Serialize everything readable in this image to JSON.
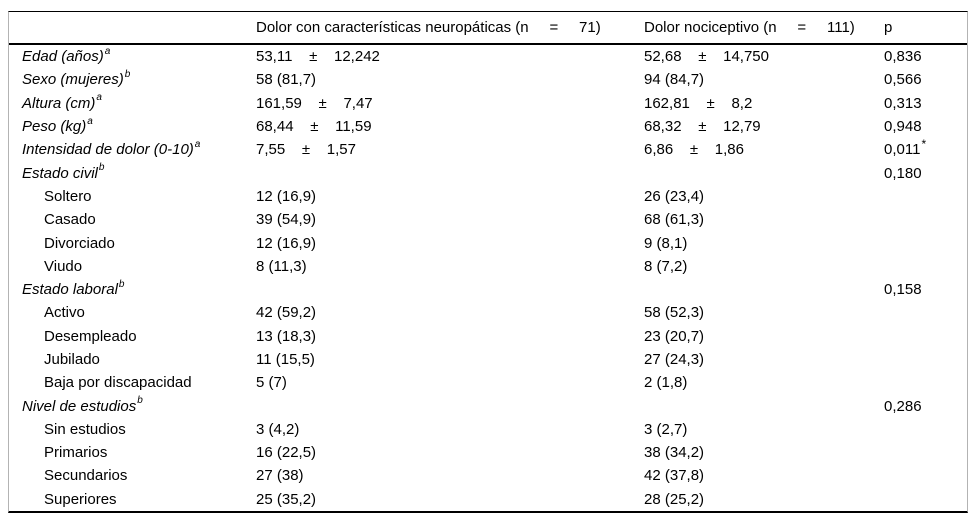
{
  "table": {
    "header": {
      "col1": "",
      "col2": "Dolor con características neuropáticas (n     =     71)",
      "col3": "Dolor nociceptivo (n     =     111)",
      "col4": "p"
    },
    "rows": [
      {
        "label": "Edad (años)",
        "sup": "a",
        "sub": false,
        "neuropathic": "53,11    ±    12,242",
        "nociceptive": "52,68    ±    14,750",
        "p": "0,836",
        "p_sup": ""
      },
      {
        "label": "Sexo (mujeres)",
        "sup": "b",
        "sub": false,
        "neuropathic": "58 (81,7)",
        "nociceptive": "94 (84,7)",
        "p": "0,566",
        "p_sup": ""
      },
      {
        "label": "Altura (cm)",
        "sup": "a",
        "sub": false,
        "neuropathic": "161,59    ±    7,47",
        "nociceptive": "162,81    ±    8,2",
        "p": "0,313",
        "p_sup": ""
      },
      {
        "label": "Peso (kg)",
        "sup": "a",
        "sub": false,
        "neuropathic": "68,44    ±    11,59",
        "nociceptive": "68,32    ±    12,79",
        "p": "0,948",
        "p_sup": ""
      },
      {
        "label": "Intensidad de dolor (0-10)",
        "sup": "a",
        "sub": false,
        "neuropathic": "7,55    ±    1,57",
        "nociceptive": "6,86    ±    1,86",
        "p": "0,011",
        "p_sup": "*"
      },
      {
        "label": "Estado civil",
        "sup": "b",
        "sub": false,
        "neuropathic": "",
        "nociceptive": "",
        "p": "0,180",
        "p_sup": ""
      },
      {
        "label": "Soltero",
        "sup": "",
        "sub": true,
        "neuropathic": "12 (16,9)",
        "nociceptive": "26 (23,4)",
        "p": "",
        "p_sup": ""
      },
      {
        "label": "Casado",
        "sup": "",
        "sub": true,
        "neuropathic": "39 (54,9)",
        "nociceptive": "68 (61,3)",
        "p": "",
        "p_sup": ""
      },
      {
        "label": "Divorciado",
        "sup": "",
        "sub": true,
        "neuropathic": "12 (16,9)",
        "nociceptive": "9 (8,1)",
        "p": "",
        "p_sup": ""
      },
      {
        "label": "Viudo",
        "sup": "",
        "sub": true,
        "neuropathic": "8 (11,3)",
        "nociceptive": "8 (7,2)",
        "p": "",
        "p_sup": ""
      },
      {
        "label": "Estado laboral",
        "sup": "b",
        "sub": false,
        "neuropathic": "",
        "nociceptive": "",
        "p": "0,158",
        "p_sup": ""
      },
      {
        "label": "Activo",
        "sup": "",
        "sub": true,
        "neuropathic": "42 (59,2)",
        "nociceptive": "58 (52,3)",
        "p": "",
        "p_sup": ""
      },
      {
        "label": "Desempleado",
        "sup": "",
        "sub": true,
        "neuropathic": "13 (18,3)",
        "nociceptive": "23 (20,7)",
        "p": "",
        "p_sup": ""
      },
      {
        "label": "Jubilado",
        "sup": "",
        "sub": true,
        "neuropathic": "11 (15,5)",
        "nociceptive": "27 (24,3)",
        "p": "",
        "p_sup": ""
      },
      {
        "label": "Baja por discapacidad",
        "sup": "",
        "sub": true,
        "neuropathic": "5 (7)",
        "nociceptive": "2 (1,8)",
        "p": "",
        "p_sup": ""
      },
      {
        "label": "Nivel de estudios",
        "sup": "b",
        "sub": false,
        "neuropathic": "",
        "nociceptive": "",
        "p": "0,286",
        "p_sup": ""
      },
      {
        "label": "Sin estudios",
        "sup": "",
        "sub": true,
        "neuropathic": "3 (4,2)",
        "nociceptive": "3 (2,7)",
        "p": "",
        "p_sup": ""
      },
      {
        "label": "Primarios",
        "sup": "",
        "sub": true,
        "neuropathic": "16 (22,5)",
        "nociceptive": "38 (34,2)",
        "p": "",
        "p_sup": ""
      },
      {
        "label": "Secundarios",
        "sup": "",
        "sub": true,
        "neuropathic": "27 (38)",
        "nociceptive": "42 (37,8)",
        "p": "",
        "p_sup": ""
      },
      {
        "label": "Superiores",
        "sup": "",
        "sub": true,
        "neuropathic": "25 (35,2)",
        "nociceptive": "28 (25,2)",
        "p": "",
        "p_sup": ""
      }
    ]
  }
}
